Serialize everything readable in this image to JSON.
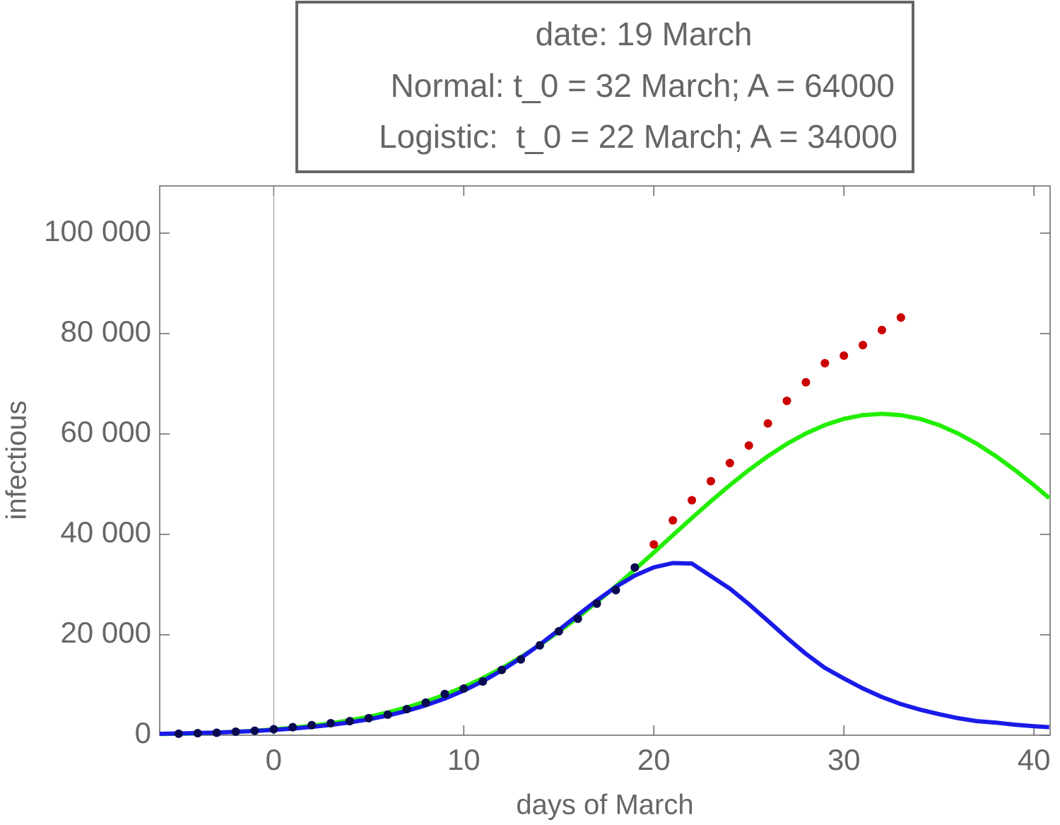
{
  "chart_data": {
    "type": "line",
    "annotations": [
      "date: 19 March",
      "Normal: t_0 = 32 March; A = 64000",
      "Logistic:  t_0 = 22 March; A = 34000"
    ],
    "x_label": "days of March",
    "y_label": "infectious",
    "xlim": [
      -6,
      40.85
    ],
    "xticks": [
      0,
      10,
      20,
      30,
      40
    ],
    "ylim": [
      0,
      109400
    ],
    "yticks": [
      0,
      {
        "value": 20000,
        "label": "20 000"
      },
      {
        "value": 40000,
        "label": "40 000"
      },
      {
        "value": 60000,
        "label": "60 000"
      },
      {
        "value": 80000,
        "label": "80 000"
      },
      {
        "value": 100000,
        "label": "100 000"
      }
    ],
    "series": [
      {
        "type": "line",
        "color": "#22ee00",
        "x": [
          -6,
          -5,
          -4,
          -3,
          -2,
          -1,
          0,
          1,
          2,
          3,
          4,
          5,
          6,
          7,
          8,
          9,
          10,
          11,
          12,
          13,
          14,
          15,
          16,
          17,
          18,
          19,
          20,
          21,
          22,
          23,
          24,
          25,
          26,
          27,
          28,
          29,
          30,
          31,
          32,
          33,
          34,
          35,
          36,
          37,
          38,
          39,
          40,
          40.8
        ],
        "values": [
          223,
          300,
          399,
          527,
          690,
          898,
          1157,
          1481,
          1881,
          2372,
          2965,
          3676,
          4527,
          5530,
          6703,
          8052,
          9607,
          11368,
          13350,
          15552,
          17978,
          20627,
          23475,
          26502,
          29690,
          33005,
          36397,
          39834,
          43251,
          46592,
          49805,
          52819,
          55578,
          58029,
          60109,
          61779,
          63002,
          63750,
          64000,
          63750,
          63002,
          61779,
          60109,
          58029,
          55578,
          52819,
          49805,
          47251
        ]
      },
      {
        "type": "line",
        "color": "#1a1ae8",
        "x": [
          -6,
          -5,
          -4,
          -3,
          -2,
          -1,
          0,
          1,
          2,
          3,
          4,
          5,
          6,
          7,
          8,
          9,
          10,
          11,
          12,
          13,
          14,
          15,
          16,
          17,
          18,
          19,
          20,
          21,
          22,
          23,
          24,
          25,
          26,
          27,
          28,
          29,
          30,
          31,
          32,
          33,
          34,
          35,
          36,
          37,
          38,
          39,
          40,
          40.8
        ],
        "values": [
          276,
          346,
          433,
          541,
          677,
          846,
          1057,
          1319,
          1645,
          2049,
          2550,
          3163,
          3919,
          4840,
          5958,
          7293,
          8887,
          10758,
          12921,
          15359,
          18061,
          20953,
          23929,
          26855,
          29544,
          31800,
          33433,
          34291,
          34200,
          31700,
          29200,
          26100,
          22800,
          19400,
          16200,
          13400,
          11300,
          9300,
          7600,
          6200,
          5100,
          4200,
          3400,
          2800,
          2500,
          2100,
          1800,
          1600
        ]
      },
      {
        "type": "scatter",
        "color": "#0a0a50",
        "x": [
          -5,
          -4,
          -3,
          -2,
          -1,
          0,
          1,
          2,
          3,
          4,
          5,
          6,
          7,
          8,
          9,
          10,
          11,
          12,
          13,
          14,
          15,
          16,
          17,
          18,
          19
        ],
        "values": [
          300,
          400,
          500,
          700,
          900,
          1200,
          1600,
          2000,
          2400,
          2800,
          3400,
          4100,
          5200,
          6500,
          8200,
          9300,
          10700,
          13000,
          15100,
          17900,
          20700,
          23200,
          26200,
          28900,
          33400
        ]
      },
      {
        "type": "scatter",
        "color": "#cc0000",
        "x": [
          20,
          21,
          22,
          23,
          24,
          25,
          26,
          27,
          28,
          29,
          30,
          31,
          32,
          33
        ],
        "values": [
          38000,
          42800,
          46800,
          50600,
          54200,
          57700,
          62100,
          66600,
          70300,
          74100,
          75600,
          77700,
          80700,
          83200
        ]
      }
    ]
  }
}
